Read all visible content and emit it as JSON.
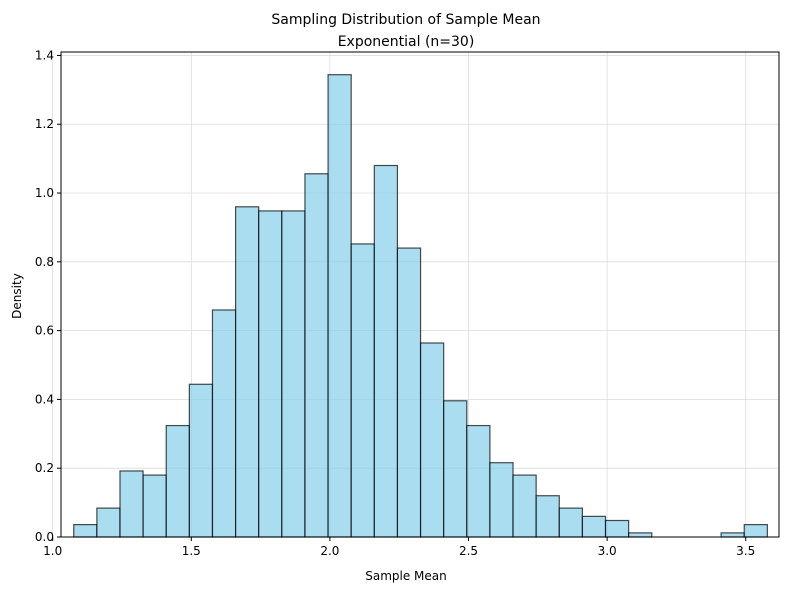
{
  "chart_data": {
    "type": "bar",
    "title": "Sampling Distribution of Sample Mean",
    "subtitle": "Exponential (n=30)",
    "xlabel": "Sample Mean",
    "ylabel": "Density",
    "xlim": [
      1.03,
      3.62
    ],
    "ylim": [
      0,
      1.41
    ],
    "xticks": [
      "1.0",
      "1.5",
      "2.0",
      "2.5",
      "3.0",
      "3.5"
    ],
    "xtick_values": [
      1.0,
      1.5,
      2.0,
      2.5,
      3.0,
      3.5
    ],
    "yticks": [
      "0.0",
      "0.2",
      "0.4",
      "0.6",
      "0.8",
      "1.0",
      "1.2",
      "1.4"
    ],
    "ytick_values": [
      0.0,
      0.2,
      0.4,
      0.6,
      0.8,
      1.0,
      1.2,
      1.4
    ],
    "grid": true,
    "bar_color": "#87CEEB",
    "edge_color": "#000000",
    "bin_start": 1.076,
    "bin_width": 0.0834,
    "values": [
      0.036,
      0.084,
      0.192,
      0.18,
      0.324,
      0.444,
      0.66,
      0.96,
      0.948,
      0.948,
      1.056,
      1.344,
      0.852,
      1.08,
      0.84,
      0.564,
      0.396,
      0.324,
      0.216,
      0.18,
      0.12,
      0.084,
      0.06,
      0.048,
      0.012,
      0.0,
      0.0,
      0.0,
      0.012,
      0.036
    ]
  }
}
